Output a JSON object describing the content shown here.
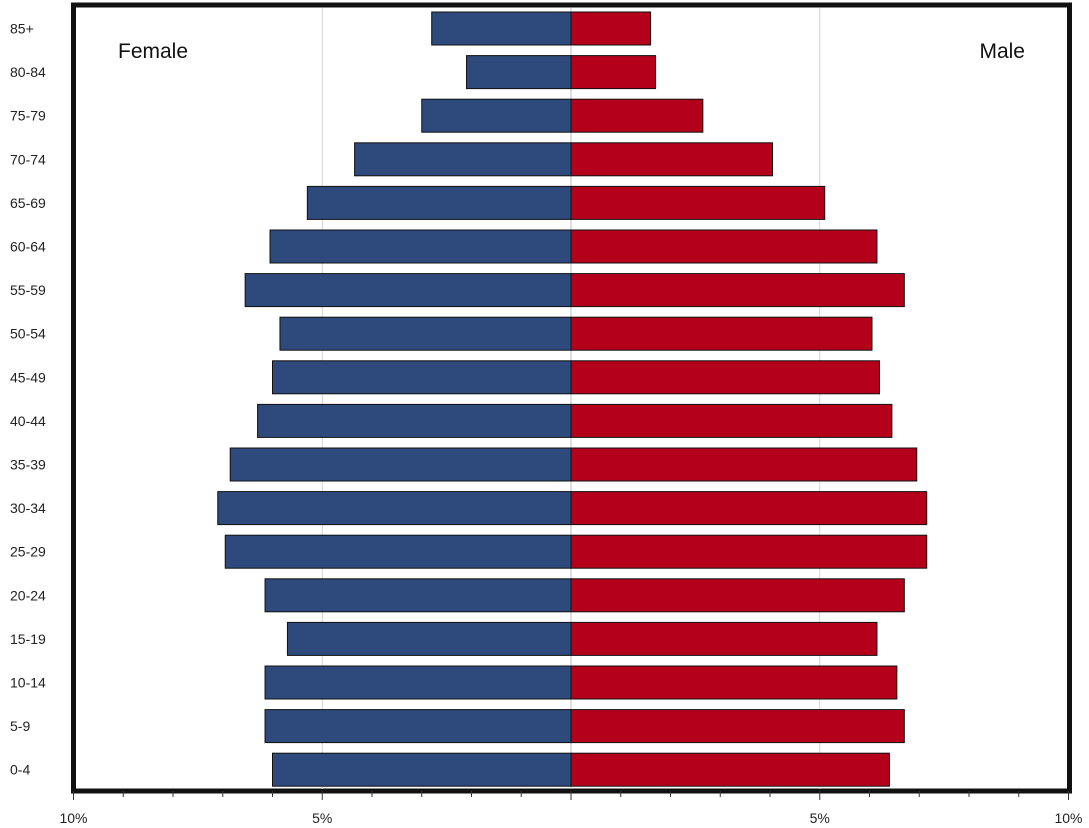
{
  "chart_data": {
    "type": "bar",
    "orientation": "horizontal-population-pyramid",
    "categories": [
      "85+",
      "80-84",
      "75-79",
      "70-74",
      "65-69",
      "60-64",
      "55-59",
      "50-54",
      "45-49",
      "40-44",
      "35-39",
      "30-34",
      "25-29",
      "20-24",
      "15-19",
      "10-14",
      "5-9",
      "0-4"
    ],
    "series": [
      {
        "name": "Female",
        "color": "#2e4a7d",
        "values": [
          2.8,
          2.1,
          3.0,
          4.35,
          5.3,
          6.05,
          6.55,
          5.85,
          6.0,
          6.3,
          6.85,
          7.1,
          6.95,
          6.15,
          5.7,
          6.15,
          6.15,
          6.0
        ]
      },
      {
        "name": "Male",
        "color": "#b5001c",
        "values": [
          1.6,
          1.7,
          2.65,
          4.05,
          5.1,
          6.15,
          6.7,
          6.05,
          6.2,
          6.45,
          6.95,
          7.15,
          7.15,
          6.7,
          6.15,
          6.55,
          6.7,
          6.4
        ]
      }
    ],
    "xlim": [
      -10,
      10
    ],
    "xticks": [
      {
        "value": -10,
        "label": "10%"
      },
      {
        "value": -5,
        "label": "5%"
      },
      {
        "value": 5,
        "label": "5%"
      },
      {
        "value": 10,
        "label": "10%"
      }
    ],
    "grid": true,
    "left_label": "Female",
    "right_label": "Male"
  }
}
